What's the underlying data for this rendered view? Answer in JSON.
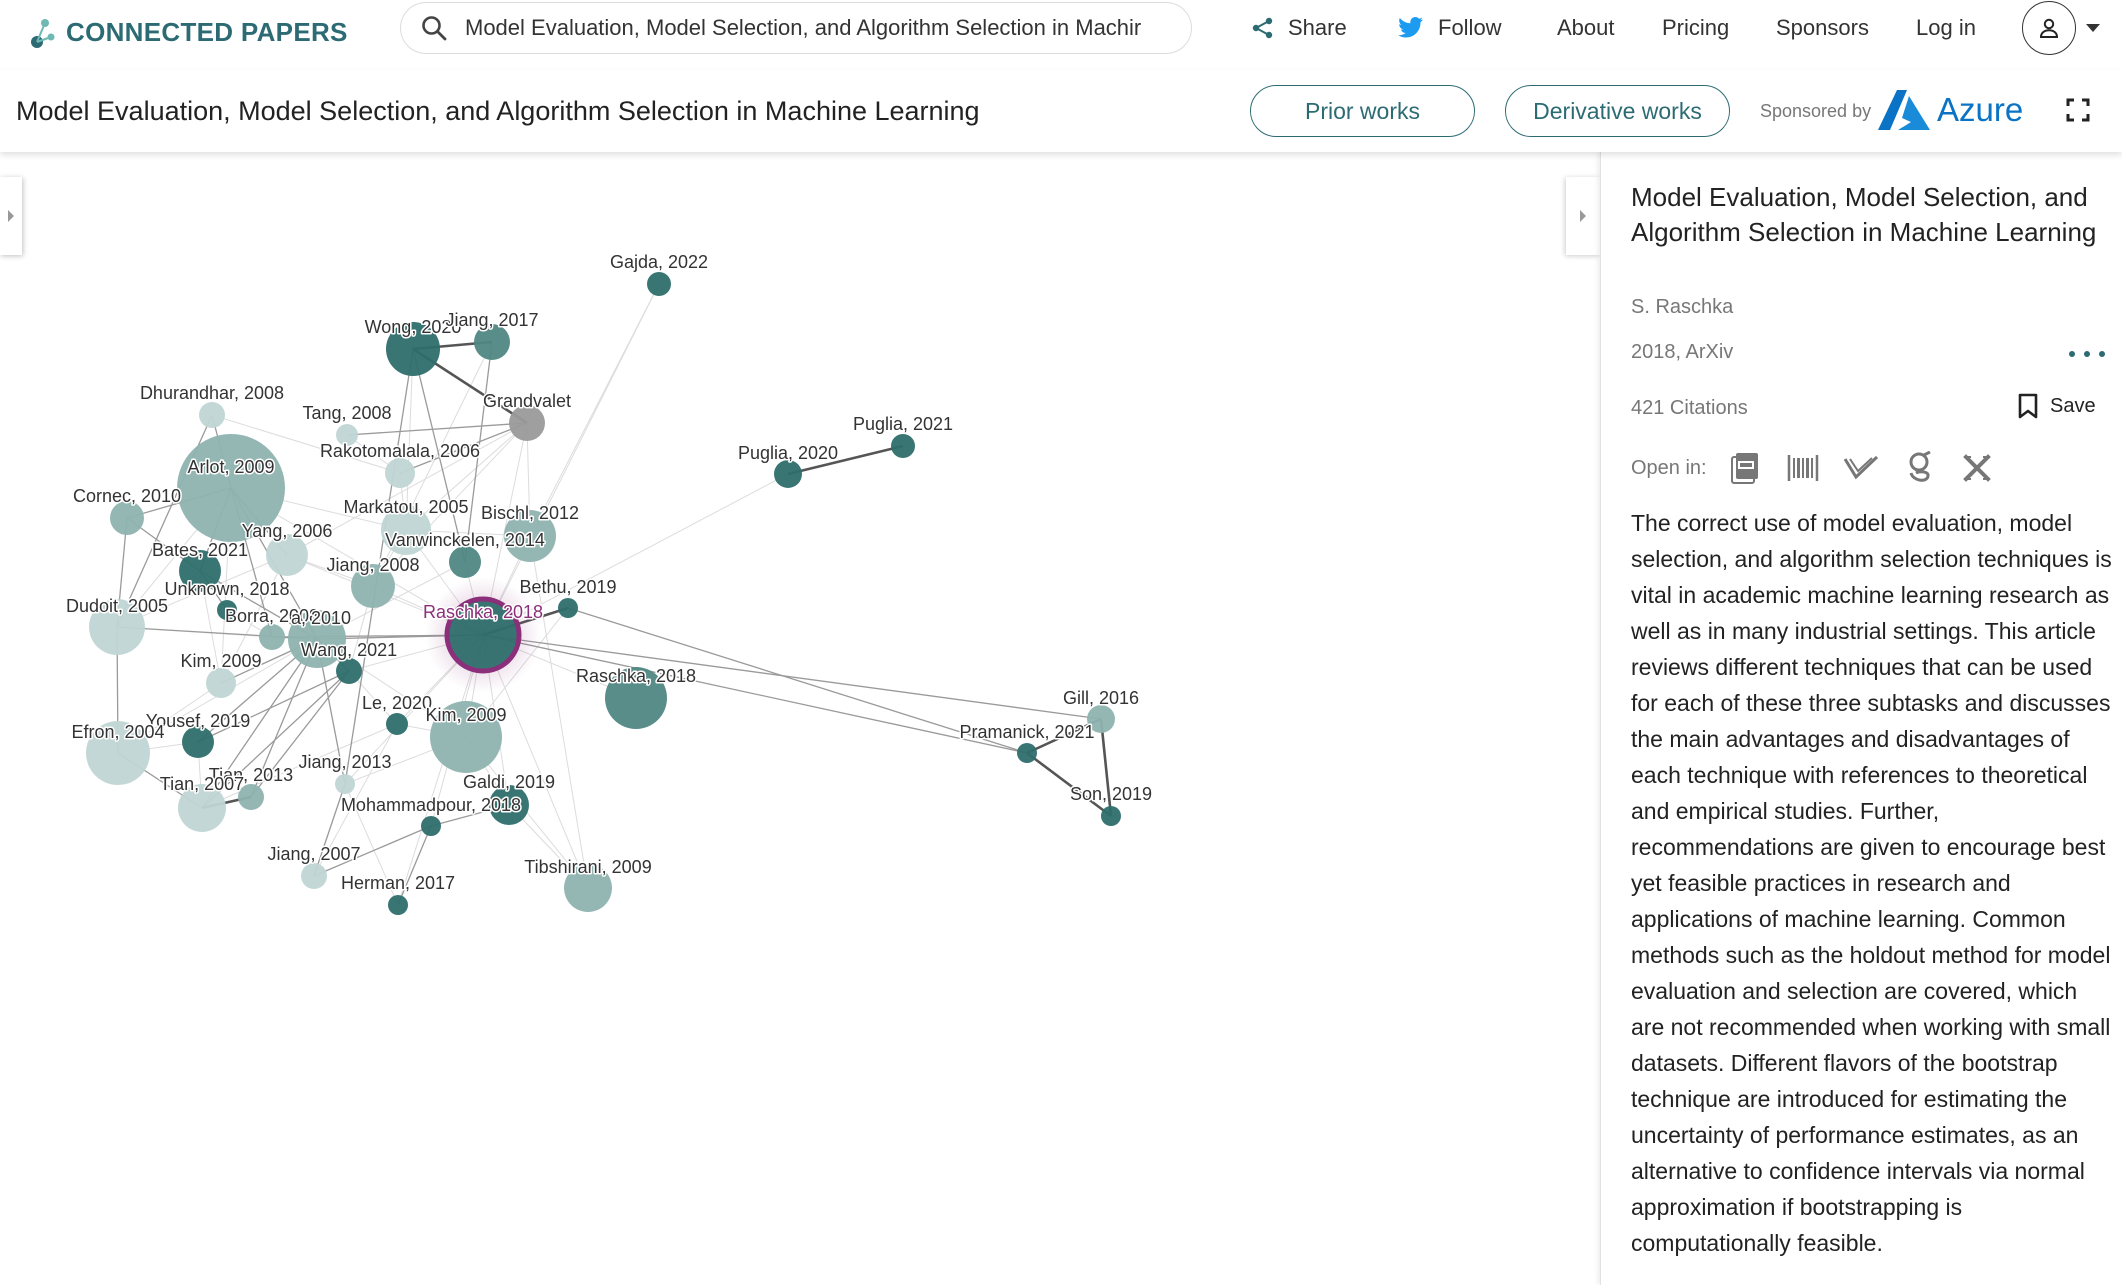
{
  "header": {
    "logo_text": "CONNECTED PAPERS",
    "search_value": "Model Evaluation, Model Selection, and Algorithm Selection in Machir",
    "nav": {
      "share": "Share",
      "follow": "Follow",
      "about": "About",
      "pricing": "Pricing",
      "sponsors": "Sponsors",
      "login": "Log in"
    }
  },
  "titlebar": {
    "title": "Model Evaluation, Model Selection, and Algorithm Selection in Machine Learning",
    "prior_works": "Prior works",
    "derivative_works": "Derivative works",
    "sponsored_by": "Sponsored by",
    "sponsor_name": "Azure"
  },
  "graph": {
    "nodes": [
      {
        "id": "gajda2022",
        "label": "Gajda, 2022",
        "dark": true
      },
      {
        "id": "wong2020",
        "label": "Wong, 2020",
        "dark": true
      },
      {
        "id": "jiang2017",
        "label": "Jiang, 2017",
        "dark": false
      },
      {
        "id": "grandvalet",
        "label": "Grandvalet",
        "dark": false
      },
      {
        "id": "dhurandhar2008",
        "label": "Dhurandhar, 2008",
        "dark": false
      },
      {
        "id": "tang2008",
        "label": "Tang, 2008",
        "dark": false
      },
      {
        "id": "arlot2009",
        "label": "Arlot, 2009",
        "dark": false
      },
      {
        "id": "rakotomalala2006",
        "label": "Rakotomalala, 2006",
        "dark": false
      },
      {
        "id": "cornec2010",
        "label": "Cornec, 2010",
        "dark": false
      },
      {
        "id": "markatou2005",
        "label": "Markatou, 2005",
        "dark": false
      },
      {
        "id": "bischl2012",
        "label": "Bischl, 2012",
        "dark": false
      },
      {
        "id": "yang2006",
        "label": "Yang, 2006",
        "dark": false
      },
      {
        "id": "vanwinckelen2014",
        "label": "Vanwinckelen, 2014",
        "dark": false
      },
      {
        "id": "bates2021",
        "label": "Bates, 2021",
        "dark": true
      },
      {
        "id": "jiang2008",
        "label": "Jiang, 2008",
        "dark": false
      },
      {
        "id": "unknown2018",
        "label": "Unknown, 2018",
        "dark": true
      },
      {
        "id": "bethu2019",
        "label": "Bethu, 2019",
        "dark": true
      },
      {
        "id": "dudoit2005",
        "label": "Dudoit, 2005",
        "dark": false
      },
      {
        "id": "borra2008",
        "label": "Borra, 2008",
        "dark": false
      },
      {
        "id": "xa2010",
        "label": "a, 2010",
        "dark": false
      },
      {
        "id": "raschka2018",
        "label": "Raschka, 2018",
        "dark": true,
        "origin": true
      },
      {
        "id": "wang2021",
        "label": "Wang, 2021",
        "dark": true
      },
      {
        "id": "kim2009a",
        "label": "Kim, 2009",
        "dark": false
      },
      {
        "id": "raschka2018b",
        "label": "Raschka, 2018",
        "dark": false
      },
      {
        "id": "le2020",
        "label": "Le, 2020",
        "dark": true
      },
      {
        "id": "yousef2019",
        "label": "Yousef, 2019",
        "dark": true
      },
      {
        "id": "kim2009b",
        "label": "Kim, 2009",
        "dark": false
      },
      {
        "id": "efron2004",
        "label": "Efron, 2004",
        "dark": false
      },
      {
        "id": "jiang2013",
        "label": "Jiang, 2013",
        "dark": false
      },
      {
        "id": "tian2013",
        "label": "Tian, 2013",
        "dark": false
      },
      {
        "id": "tian2007",
        "label": "Tian, 2007",
        "dark": false
      },
      {
        "id": "galdi2019",
        "label": "Galdi, 2019",
        "dark": true
      },
      {
        "id": "mohammadpour2018",
        "label": "Mohammadpour, 2018",
        "dark": true
      },
      {
        "id": "jiang2007",
        "label": "Jiang, 2007",
        "dark": false
      },
      {
        "id": "herman2017",
        "label": "Herman, 2017",
        "dark": true
      },
      {
        "id": "tibshirani2009",
        "label": "Tibshirani, 2009",
        "dark": false
      },
      {
        "id": "puglia2020",
        "label": "Puglia, 2020",
        "dark": true
      },
      {
        "id": "puglia2021",
        "label": "Puglia, 2021",
        "dark": true
      },
      {
        "id": "gill2016",
        "label": "Gill, 2016",
        "dark": false
      },
      {
        "id": "pramanick2021",
        "label": "Pramanick, 2021",
        "dark": true
      },
      {
        "id": "son2019",
        "label": "Son, 2019",
        "dark": true
      }
    ]
  },
  "panel": {
    "title": "Model Evaluation, Model Selection, and Algorithm Selection in Machine Learning",
    "authors": "S. Raschka",
    "venue": "2018, ArXiv",
    "citations": "421 Citations",
    "save": "Save",
    "open_in": "Open in:",
    "open_in_icons": [
      "pdf-icon",
      "barcode-icon",
      "semantic-scholar-icon",
      "google-scholar-icon",
      "arxiv-icon"
    ],
    "abstract": "The correct use of model evaluation, model selection, and algorithm selection techniques is vital in academic machine learning research as well as in many industrial settings. This article reviews different techniques that can be used for each of these three subtasks and discusses the main advantages and disadvantages of each technique with references to theoretical and empirical studies. Further, recommendations are given to encourage best yet feasible practices in research and applications of machine learning. Common methods such as the holdout method for model evaluation and selection are covered, which are not recommended when working with small datasets. Different flavors of the bootstrap technique are introduced for estimating the uncertainty of performance estimates, as an alternative to confidence intervals via normal approximation if bootstrapping is computationally feasible."
  },
  "colors": {
    "brand": "#2c6b73",
    "node_dark": "#2e6e6c",
    "node_light": "#9fc0bd",
    "origin_ring": "#8b2f7a",
    "azure": "#0a73c5"
  }
}
